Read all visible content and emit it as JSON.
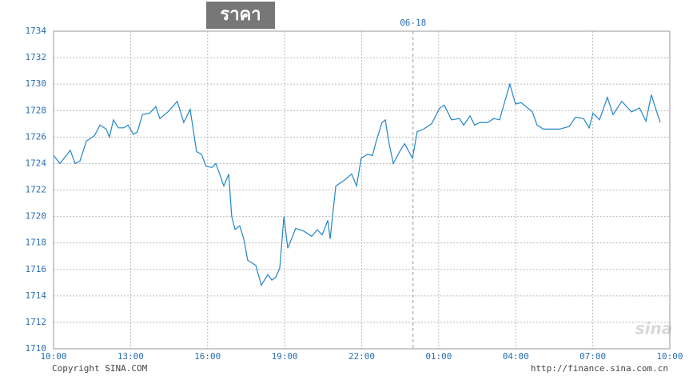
{
  "chart_data": {
    "type": "line",
    "title": "ราคา",
    "color": "#2186c9",
    "x": [
      0,
      0.25,
      0.65,
      0.84,
      1.03,
      1.28,
      1.59,
      1.81,
      2.05,
      2.18,
      2.33,
      2.52,
      2.74,
      2.9,
      3.11,
      3.27,
      3.46,
      3.74,
      3.98,
      4.14,
      4.45,
      4.82,
      5.07,
      5.32,
      5.57,
      5.76,
      5.94,
      6.16,
      6.32,
      6.47,
      6.63,
      6.82,
      6.94,
      7.07,
      7.25,
      7.41,
      7.56,
      7.88,
      8.09,
      8.34,
      8.5,
      8.65,
      8.81,
      8.97,
      9.12,
      9.43,
      9.74,
      10.05,
      10.27,
      10.46,
      10.68,
      10.77,
      10.99,
      11.3,
      11.61,
      11.8,
      11.98,
      12.23,
      12.42,
      12.54,
      12.79,
      12.92,
      13.04,
      13.23,
      13.48,
      13.67,
      13.98,
      14.16,
      14.41,
      14.72,
      15.04,
      15.22,
      15.5,
      15.81,
      15.97,
      16.22,
      16.4,
      16.59,
      16.9,
      17.15,
      17.37,
      17.59,
      17.77,
      17.99,
      18.21,
      18.46,
      18.65,
      18.83,
      19.08,
      19.7,
      20.08,
      20.33,
      20.64,
      20.86,
      21.01,
      21.26,
      21.57,
      21.79,
      22.13,
      22.51,
      22.82,
      23.07,
      23.28,
      23.44,
      23.63
    ],
    "values": [
      1724.6,
      1724.0,
      1725.0,
      1724.0,
      1724.2,
      1725.7,
      1726.1,
      1726.9,
      1726.6,
      1726.0,
      1727.3,
      1726.7,
      1726.7,
      1726.9,
      1726.2,
      1726.4,
      1727.7,
      1727.8,
      1728.3,
      1727.4,
      1727.9,
      1728.7,
      1727.1,
      1728.1,
      1724.9,
      1724.7,
      1723.8,
      1723.7,
      1724.0,
      1723.2,
      1722.3,
      1723.2,
      1720.0,
      1719.0,
      1719.3,
      1718.3,
      1716.7,
      1716.3,
      1714.8,
      1715.6,
      1715.2,
      1715.4,
      1716.1,
      1720.0,
      1717.6,
      1719.1,
      1718.9,
      1718.5,
      1719.0,
      1718.6,
      1719.7,
      1718.3,
      1722.3,
      1722.7,
      1723.2,
      1722.3,
      1724.4,
      1724.7,
      1724.6,
      1725.5,
      1727.1,
      1727.3,
      1725.8,
      1724.0,
      1724.9,
      1725.5,
      1724.4,
      1726.4,
      1726.6,
      1727.0,
      1728.2,
      1728.4,
      1727.3,
      1727.4,
      1726.9,
      1727.6,
      1726.9,
      1727.1,
      1727.1,
      1727.4,
      1727.3,
      1728.8,
      1730.0,
      1728.5,
      1728.6,
      1728.2,
      1727.9,
      1726.9,
      1726.6,
      1726.6,
      1726.8,
      1727.5,
      1727.4,
      1726.7,
      1727.8,
      1727.3,
      1729.0,
      1727.7,
      1728.7,
      1727.9,
      1728.2,
      1727.2,
      1729.2,
      1728.2,
      1727.1
    ],
    "xlim": [
      0,
      24
    ],
    "ylim": [
      1710,
      1734
    ],
    "xticks": [
      {
        "value": 0,
        "label": "10:00"
      },
      {
        "value": 3,
        "label": "13:00"
      },
      {
        "value": 6,
        "label": "16:00"
      },
      {
        "value": 9,
        "label": "19:00"
      },
      {
        "value": 12,
        "label": "22:00"
      },
      {
        "value": 15,
        "label": "01:00"
      },
      {
        "value": 18,
        "label": "04:00"
      },
      {
        "value": 21,
        "label": "07:00"
      },
      {
        "value": 24,
        "label": "10:00"
      }
    ],
    "yticks": [
      1710,
      1712,
      1714,
      1716,
      1718,
      1720,
      1722,
      1724,
      1726,
      1728,
      1730,
      1732,
      1734
    ],
    "grid": true,
    "annotations": [
      {
        "x": 14,
        "label": "06-18"
      }
    ],
    "copyright": "Copyright  SINA.COM",
    "source": "http://finance.sina.com.cn",
    "logo": "sina"
  }
}
